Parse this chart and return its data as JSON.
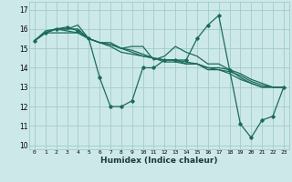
{
  "xlabel": "Humidex (Indice chaleur)",
  "ylabel": "",
  "xlim": [
    -0.5,
    23.5
  ],
  "ylim": [
    9.8,
    17.4
  ],
  "yticks": [
    10,
    11,
    12,
    13,
    14,
    15,
    16,
    17
  ],
  "xticks": [
    0,
    1,
    2,
    3,
    4,
    5,
    6,
    7,
    8,
    9,
    10,
    11,
    12,
    13,
    14,
    15,
    16,
    17,
    18,
    19,
    20,
    21,
    22,
    23
  ],
  "bg_color": "#cde8e8",
  "grid_color": "#a0cccc",
  "line_color": "#1a6b5a",
  "series": [
    [
      15.4,
      15.8,
      16.0,
      16.1,
      15.9,
      15.5,
      13.5,
      12.0,
      12.0,
      12.3,
      14.0,
      14.0,
      14.4,
      14.4,
      14.4,
      15.5,
      16.2,
      16.7,
      13.9,
      11.1,
      10.4,
      11.3,
      11.5,
      13.0
    ],
    [
      15.4,
      15.8,
      15.8,
      15.8,
      15.8,
      15.5,
      15.3,
      15.3,
      15.0,
      15.1,
      15.1,
      14.4,
      14.6,
      15.1,
      14.8,
      14.6,
      14.2,
      14.2,
      13.9,
      13.5,
      13.2,
      13.0,
      13.0,
      13.0
    ],
    [
      15.4,
      15.9,
      16.0,
      15.9,
      15.8,
      15.5,
      15.3,
      15.1,
      14.8,
      14.7,
      14.6,
      14.5,
      14.4,
      14.4,
      14.2,
      14.2,
      14.0,
      14.0,
      13.9,
      13.7,
      13.4,
      13.2,
      13.0,
      13.0
    ],
    [
      15.4,
      15.8,
      16.0,
      16.0,
      16.0,
      15.5,
      15.3,
      15.2,
      15.0,
      14.9,
      14.7,
      14.5,
      14.3,
      14.3,
      14.2,
      14.2,
      13.9,
      13.9,
      13.7,
      13.4,
      13.2,
      13.0,
      13.0,
      13.0
    ],
    [
      15.4,
      15.8,
      16.0,
      16.0,
      16.2,
      15.5,
      15.3,
      15.2,
      15.0,
      14.8,
      14.6,
      14.5,
      14.4,
      14.4,
      14.3,
      14.2,
      14.0,
      13.9,
      13.8,
      13.6,
      13.3,
      13.1,
      13.0,
      13.0
    ]
  ]
}
